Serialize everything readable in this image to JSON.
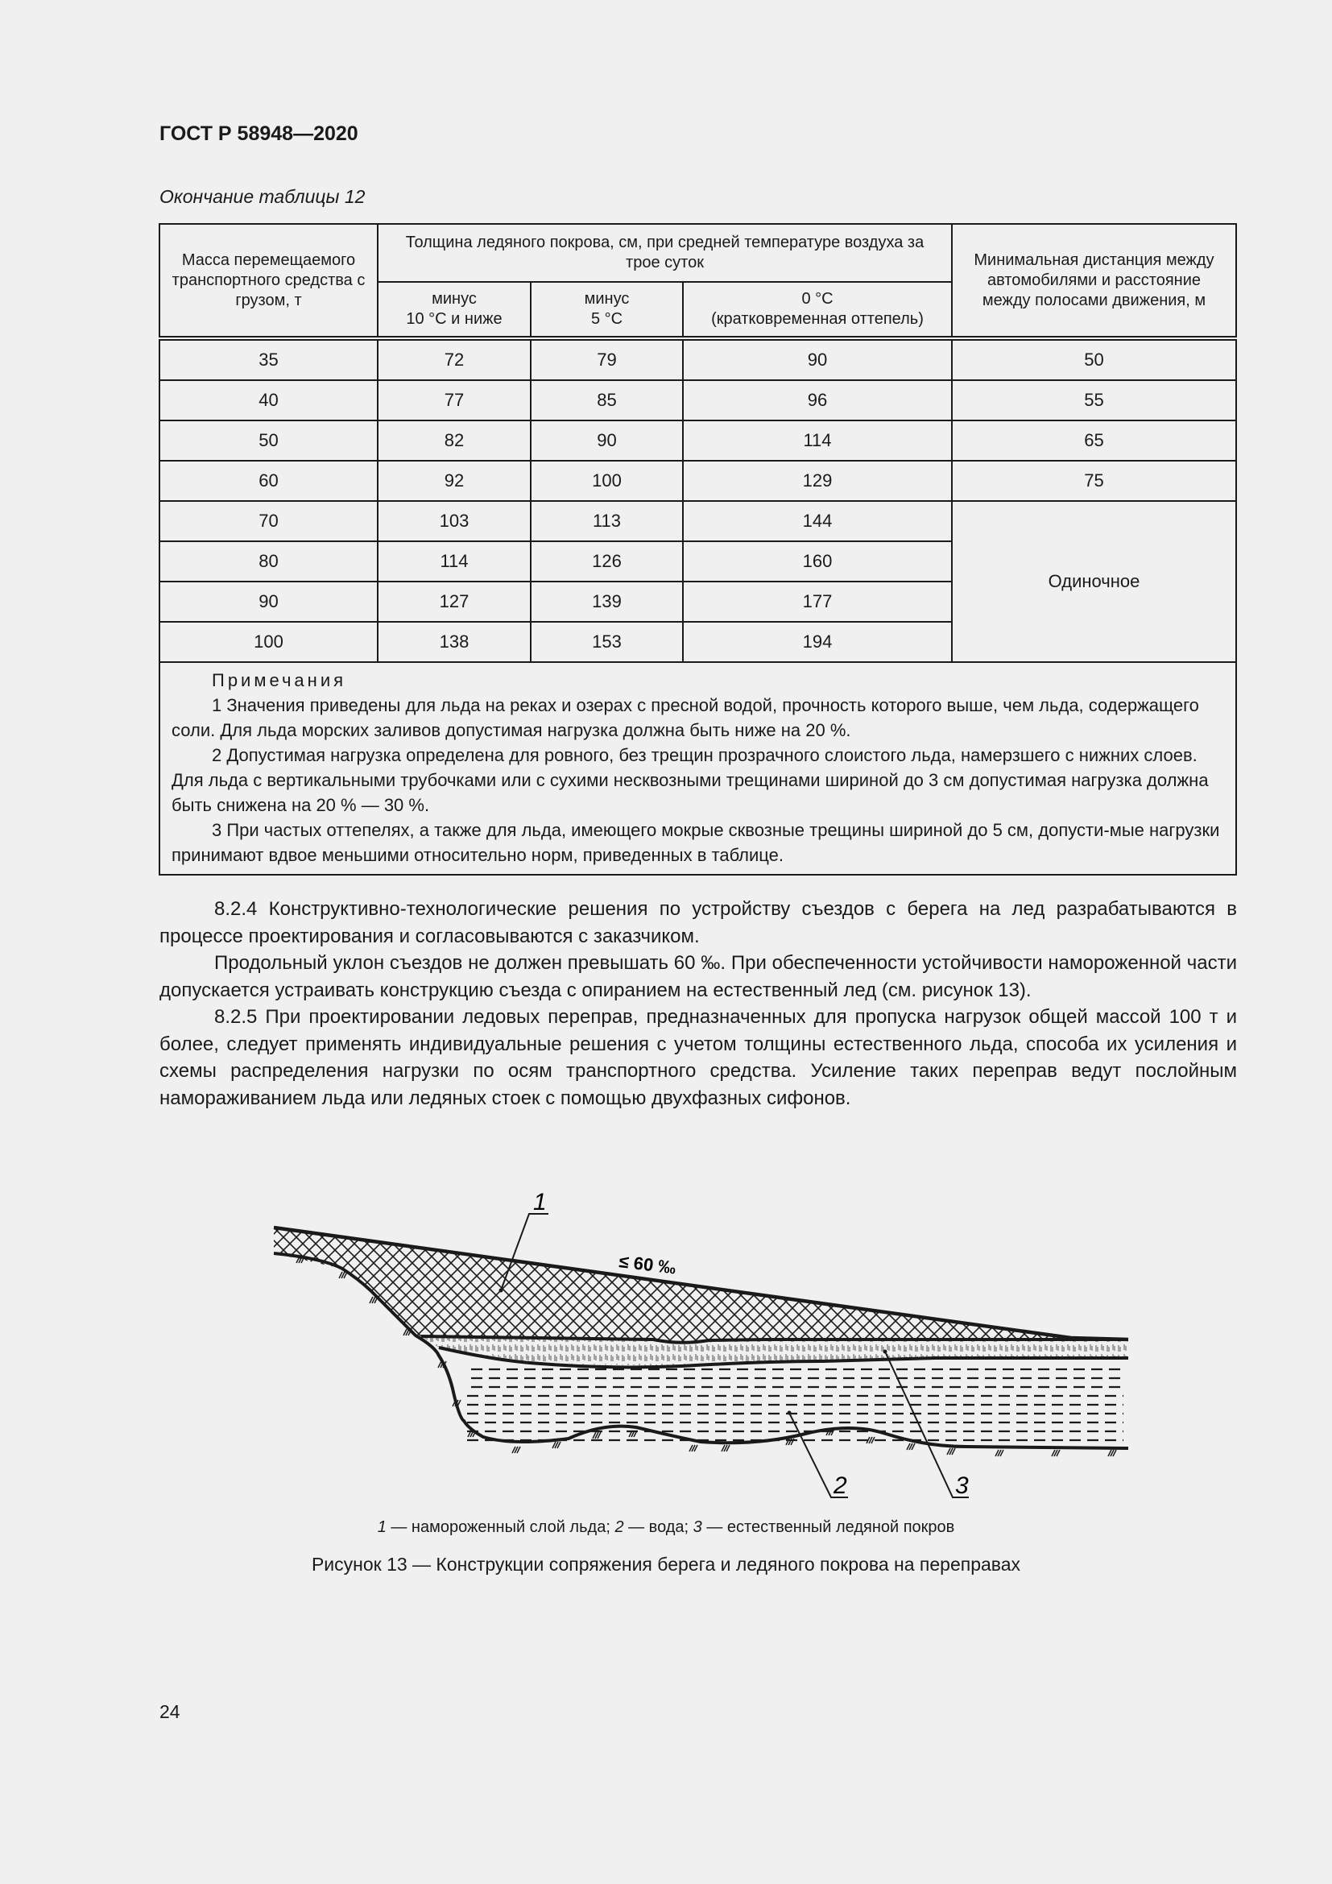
{
  "header": {
    "doc_id": "ГОСТ Р 58948—2020"
  },
  "table": {
    "caption": "Окончание таблицы 12",
    "headers": {
      "mass": "Масса перемещаемого транспортного средства с грузом, т",
      "thickness": "Толщина ледяного покрова, см, при средней температуре воздуха за трое суток",
      "t1": "минус\n10 °С и ниже",
      "t2": "минус\n5 °С",
      "t3": "0 °С\n(кратковременная оттепель)",
      "distance": "Минимальная дистанция между автомобилями и расстояние между полосами движения, м"
    },
    "rows": [
      [
        "35",
        "72",
        "79",
        "90",
        "50"
      ],
      [
        "40",
        "77",
        "85",
        "96",
        "55"
      ],
      [
        "50",
        "82",
        "90",
        "114",
        "65"
      ],
      [
        "60",
        "92",
        "100",
        "129",
        "75"
      ],
      [
        "70",
        "103",
        "113",
        "144"
      ],
      [
        "80",
        "114",
        "126",
        "160"
      ],
      [
        "90",
        "127",
        "139",
        "177"
      ],
      [
        "100",
        "138",
        "153",
        "194"
      ]
    ],
    "merged_distance": "Одиночное",
    "notes_title": "Примечания",
    "notes": [
      "1 Значения приведены для льда на реках и озерах с пресной водой, прочность которого выше, чем льда, содержащего соли. Для льда морских заливов допустимая нагрузка должна быть ниже на 20 %.",
      "2 Допустимая нагрузка определена для ровного, без трещин прозрачного слоистого льда, намерзшего с нижних слоев. Для льда с вертикальными трубочками или с сухими несквозными трещинами шириной до 3 см допустимая нагрузка должна быть снижена на 20 % — 30 %.",
      "3 При частых оттепелях, а также для льда, имеющего мокрые сквозные трещины шириной до 5 см, допусти-мые нагрузки принимают вдвое меньшими относительно норм, приведенных в таблице."
    ]
  },
  "paragraphs": [
    "8.2.4 Конструктивно-технологические решения по устройству съездов с берега на лед разрабатываются в процессе проектирования и согласовываются с заказчиком.",
    "Продольный уклон съездов не должен превышать 60 ‰. При обеспеченности устойчивости намороженной части допускается устраивать конструкцию съезда с опиранием на естественный лед (см. рисунок 13).",
    "8.2.5 При проектировании ледовых переправ, предназначенных для пропуска нагрузок общей массой 100 т и более, следует применять индивидуальные решения с учетом толщины естественного льда, способа их усиления и схемы распределения нагрузки по осям транспортного средства. Усиление таких переправ ведут послойным намораживанием льда или ледяных стоек с помощью двухфазных сифонов."
  ],
  "figure": {
    "labels": {
      "l1": "1",
      "l2": "2",
      "l3": "3",
      "slope": "≤ 60 ‰"
    },
    "legend": [
      {
        "num": "1",
        "text": " — намороженный слой льда; "
      },
      {
        "num": "2",
        "text": " — вода; "
      },
      {
        "num": "3",
        "text": " — естественный ледяной покров"
      }
    ],
    "caption": "Рисунок 13 — Конструкции сопряжения берега и ледяного покрова на переправах"
  },
  "page_number": "24"
}
